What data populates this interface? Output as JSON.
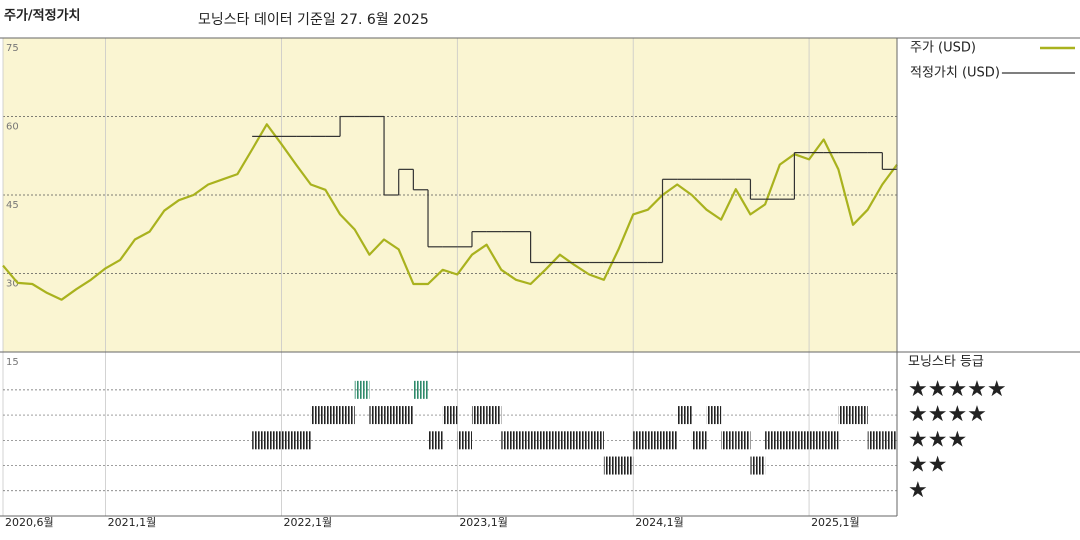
{
  "chart_data": [
    {
      "type": "line",
      "title": "주가/적정가치",
      "subtitle": "모닝스타 데이터 기준일 27. 6월 2025",
      "x": [
        "2020-06",
        "2020-07",
        "2020-08",
        "2020-09",
        "2020-10",
        "2020-11",
        "2020-12",
        "2021-01",
        "2021-02",
        "2021-03",
        "2021-04",
        "2021-05",
        "2021-06",
        "2021-07",
        "2021-08",
        "2021-09",
        "2021-10",
        "2021-11",
        "2021-12",
        "2022-01",
        "2022-02",
        "2022-03",
        "2022-04",
        "2022-05",
        "2022-06",
        "2022-07",
        "2022-08",
        "2022-09",
        "2022-10",
        "2022-11",
        "2022-12",
        "2023-01",
        "2023-02",
        "2023-03",
        "2023-04",
        "2023-05",
        "2023-06",
        "2023-07",
        "2023-08",
        "2023-09",
        "2023-10",
        "2023-11",
        "2023-12",
        "2024-01",
        "2024-02",
        "2024-03",
        "2024-04",
        "2024-05",
        "2024-06",
        "2024-07",
        "2024-08",
        "2024-09",
        "2024-10",
        "2024-11",
        "2024-12",
        "2025-01",
        "2025-02",
        "2025-03",
        "2025-04",
        "2025-05",
        "2025-06",
        "2025-07"
      ],
      "xlim": [
        "2020-06",
        "2025-07"
      ],
      "xticks": [
        {
          "value": "2020-06",
          "label": "2020,6월"
        },
        {
          "value": "2021-01",
          "label": "2021,1월"
        },
        {
          "value": "2022-01",
          "label": "2022,1월"
        },
        {
          "value": "2023-01",
          "label": "2023,1월"
        },
        {
          "value": "2024-01",
          "label": "2024,1월"
        },
        {
          "value": "2025-01",
          "label": "2025,1월"
        }
      ],
      "ylim": [
        15,
        75
      ],
      "yticks": [
        15,
        30,
        45,
        60,
        75
      ],
      "grid": true,
      "series": [
        {
          "name": "주가 (USD)",
          "color": "#a9b21e",
          "values": [
            31.5,
            28.2,
            28,
            26.3,
            25,
            27,
            28.8,
            31,
            32.6,
            36.5,
            38,
            42,
            44,
            45,
            47,
            48,
            49,
            53.7,
            58.5,
            54.7,
            50.8,
            47,
            46,
            41.3,
            38.4,
            33.6,
            36.5,
            34.6,
            28,
            28,
            30.7,
            29.8,
            33.6,
            35.5,
            30.7,
            28.8,
            28,
            30.7,
            33.6,
            31.6,
            29.8,
            28.8,
            34.6,
            41.3,
            42.2,
            45,
            47,
            45,
            42.2,
            40.3,
            46.1,
            41.3,
            43.2,
            50.8,
            52.8,
            51.8,
            55.6,
            49.9,
            39.3,
            42.2,
            47,
            50.8
          ]
        },
        {
          "name": "적정가치 (USD)",
          "color": "#333333",
          "step": true,
          "values": [
            null,
            null,
            null,
            null,
            null,
            null,
            null,
            null,
            null,
            null,
            null,
            null,
            null,
            null,
            null,
            null,
            null,
            56.2,
            56.2,
            56.2,
            56.2,
            56.2,
            56.2,
            60,
            60,
            60,
            45,
            49.9,
            46,
            35.1,
            35.1,
            35.1,
            38,
            38,
            38,
            38,
            32.1,
            32.1,
            32.1,
            32.1,
            32.1,
            32.1,
            32.1,
            32.1,
            32.1,
            48,
            48,
            48,
            48,
            48,
            48,
            44.2,
            44.2,
            44.2,
            53.1,
            53.1,
            53.1,
            53.1,
            53.1,
            53.1,
            49.9,
            49.9
          ]
        }
      ]
    },
    {
      "type": "rating",
      "title": "모닝스타 등급",
      "x": [
        "2020-06",
        "2020-07",
        "2020-08",
        "2020-09",
        "2020-10",
        "2020-11",
        "2020-12",
        "2021-01",
        "2021-02",
        "2021-03",
        "2021-04",
        "2021-05",
        "2021-06",
        "2021-07",
        "2021-08",
        "2021-09",
        "2021-10",
        "2021-11",
        "2021-12",
        "2022-01",
        "2022-02",
        "2022-03",
        "2022-04",
        "2022-05",
        "2022-06",
        "2022-07",
        "2022-08",
        "2022-09",
        "2022-10",
        "2022-11",
        "2022-12",
        "2023-01",
        "2023-02",
        "2023-03",
        "2023-04",
        "2023-05",
        "2023-06",
        "2023-07",
        "2023-08",
        "2023-09",
        "2023-10",
        "2023-11",
        "2023-12",
        "2024-01",
        "2024-02",
        "2024-03",
        "2024-04",
        "2024-05",
        "2024-06",
        "2024-07",
        "2024-08",
        "2024-09",
        "2024-10",
        "2024-11",
        "2024-12",
        "2025-01",
        "2025-02",
        "2025-03",
        "2025-04",
        "2025-05",
        "2025-06",
        "2025-07"
      ],
      "xlim": [
        "2020-06",
        "2025-07"
      ],
      "ylim": [
        0,
        6.5
      ],
      "yticks": [
        {
          "value": 5,
          "label": "★★★★★"
        },
        {
          "value": 4,
          "label": "★★★★"
        },
        {
          "value": 3,
          "label": "★★★"
        },
        {
          "value": 2,
          "label": "★★"
        },
        {
          "value": 1,
          "label": "★"
        }
      ],
      "colors": [
        "#222222",
        "#222222",
        "#222222",
        "#222222",
        "#2e8a6a"
      ],
      "values": [
        null,
        null,
        null,
        null,
        null,
        null,
        null,
        null,
        null,
        null,
        null,
        null,
        null,
        null,
        null,
        null,
        null,
        3,
        3,
        3,
        3,
        4,
        4,
        4,
        5,
        4,
        4,
        4,
        5,
        3,
        4,
        3,
        4,
        4,
        3,
        3,
        3,
        3,
        3,
        3,
        3,
        2,
        2,
        3,
        3,
        3,
        4,
        3,
        4,
        3,
        3,
        2,
        3,
        3,
        3,
        3,
        3,
        4,
        4,
        3,
        3,
        3
      ]
    }
  ]
}
